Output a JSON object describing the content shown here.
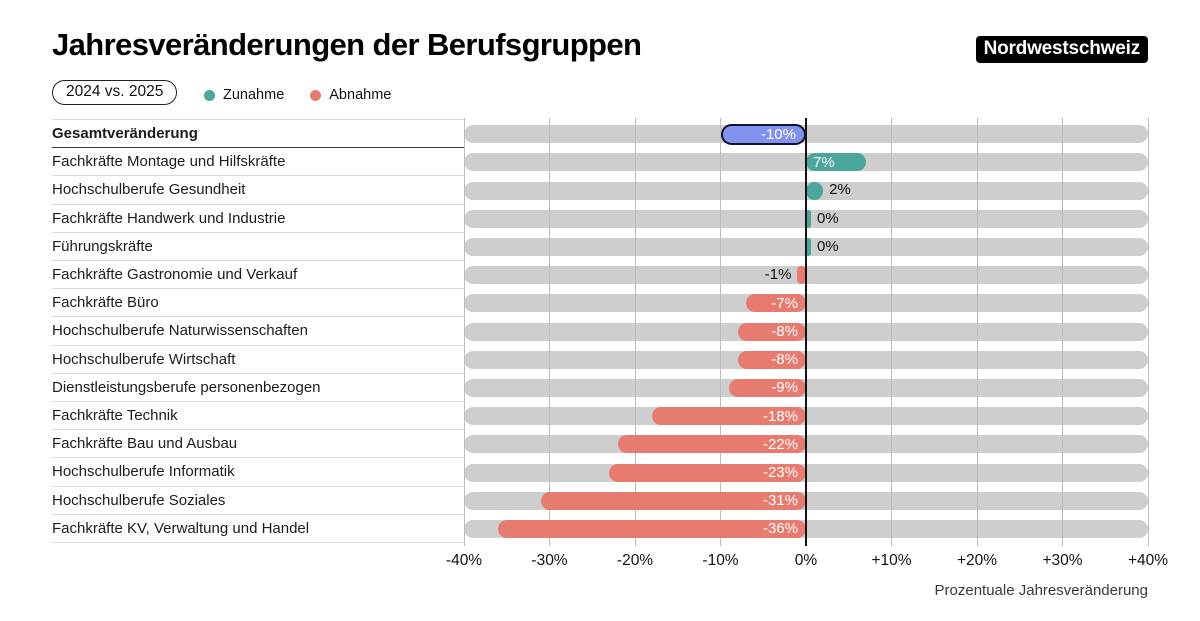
{
  "header": {
    "title": "Jahresveränderungen der Berufsgruppen",
    "brand": "Nordwestschweiz",
    "period_badge": "2024 vs. 2025"
  },
  "legend": {
    "increase": "Zunahme",
    "decrease": "Abnahme"
  },
  "colors": {
    "increase": "#4ba79b",
    "decrease": "#e87b70",
    "highlight_fill": "#8193ee",
    "highlight_border": "#0e1230",
    "track": "#cecece"
  },
  "chart_data": {
    "type": "bar",
    "orientation": "horizontal",
    "unit": "%",
    "xlim": [
      -40,
      40
    ],
    "grid": true,
    "x_ticks": [
      "-40%",
      "-30%",
      "-20%",
      "-10%",
      "0%",
      "+10%",
      "+20%",
      "+30%",
      "+40%"
    ],
    "xlabel": "Prozentuale Jahresveränderung",
    "legend_position": "top-left",
    "rows": [
      {
        "label": "Gesamtveränderung",
        "value": -10,
        "display": "-10%",
        "type": "highlight"
      },
      {
        "label": "Fachkräfte Montage und Hilfskräfte",
        "value": 7,
        "display": "7%",
        "type": "increase"
      },
      {
        "label": "Hochschulberufe Gesundheit",
        "value": 2,
        "display": "2%",
        "type": "increase"
      },
      {
        "label": "Fachkräfte Handwerk und Industrie",
        "value": 0,
        "display": "0%",
        "type": "increase"
      },
      {
        "label": "Führungskräfte",
        "value": 0,
        "display": "0%",
        "type": "increase"
      },
      {
        "label": "Fachkräfte Gastronomie und Verkauf",
        "value": -1,
        "display": "-1%",
        "type": "decrease"
      },
      {
        "label": "Fachkräfte Büro",
        "value": -7,
        "display": "-7%",
        "type": "decrease"
      },
      {
        "label": "Hochschulberufe Naturwissenschaften",
        "value": -8,
        "display": "-8%",
        "type": "decrease"
      },
      {
        "label": "Hochschulberufe Wirtschaft",
        "value": -8,
        "display": "-8%",
        "type": "decrease"
      },
      {
        "label": "Dienstleistungsberufe personenbezogen",
        "value": -9,
        "display": "-9%",
        "type": "decrease"
      },
      {
        "label": "Fachkräfte Technik",
        "value": -18,
        "display": "-18%",
        "type": "decrease"
      },
      {
        "label": "Fachkräfte Bau und Ausbau",
        "value": -22,
        "display": "-22%",
        "type": "decrease"
      },
      {
        "label": "Hochschulberufe Informatik",
        "value": -23,
        "display": "-23%",
        "type": "decrease"
      },
      {
        "label": "Hochschulberufe Soziales",
        "value": -31,
        "display": "-31%",
        "type": "decrease"
      },
      {
        "label": "Fachkräfte KV, Verwaltung und Handel",
        "value": -36,
        "display": "-36%",
        "type": "decrease"
      }
    ]
  }
}
